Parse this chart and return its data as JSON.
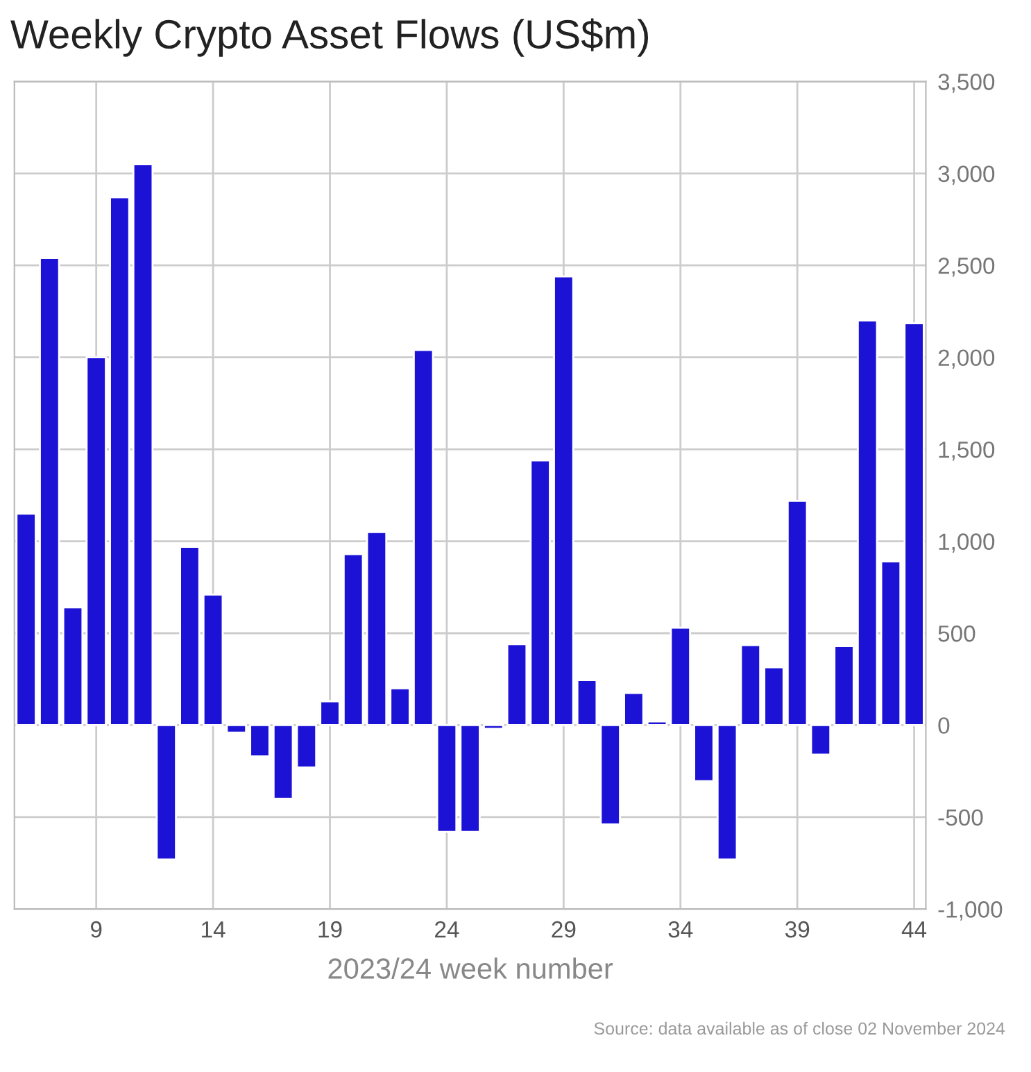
{
  "chart_data": {
    "type": "bar",
    "title": "Weekly Crypto Asset Flows (US$m)",
    "xlabel": "2023/24 week number",
    "x": [
      6,
      7,
      8,
      9,
      10,
      11,
      12,
      13,
      14,
      15,
      16,
      17,
      18,
      19,
      20,
      21,
      22,
      23,
      24,
      25,
      26,
      27,
      28,
      29,
      30,
      31,
      32,
      33,
      34,
      35,
      36,
      37,
      38,
      39,
      40,
      41,
      42,
      43,
      44
    ],
    "values": [
      1150,
      2540,
      640,
      2000,
      2870,
      3050,
      -730,
      970,
      710,
      -40,
      -170,
      -400,
      -230,
      130,
      930,
      1050,
      200,
      2040,
      -580,
      -580,
      -20,
      440,
      1440,
      2440,
      245,
      -540,
      175,
      20,
      530,
      -305,
      -730,
      435,
      315,
      1220,
      -160,
      430,
      2200,
      890,
      2185
    ],
    "color": "#1c12d6",
    "xlim": [
      5.5,
      44.5
    ],
    "xticks": [
      9,
      14,
      19,
      24,
      29,
      34,
      39,
      44
    ],
    "ylim": [
      -1000,
      3500
    ],
    "yticks": [
      {
        "value": -1000,
        "label": "-1,000"
      },
      {
        "value": -500,
        "label": "-500"
      },
      0,
      500,
      {
        "value": 1000,
        "label": "1,000"
      },
      {
        "value": 1500,
        "label": "1,500"
      },
      {
        "value": 2000,
        "label": "2,000"
      },
      {
        "value": 2500,
        "label": "2,500"
      },
      {
        "value": 3000,
        "label": "3,000"
      },
      {
        "value": 3500,
        "label": "3,500"
      }
    ],
    "grid": true,
    "annotations": [
      "Source: data available as of close 02 November 2024"
    ]
  }
}
